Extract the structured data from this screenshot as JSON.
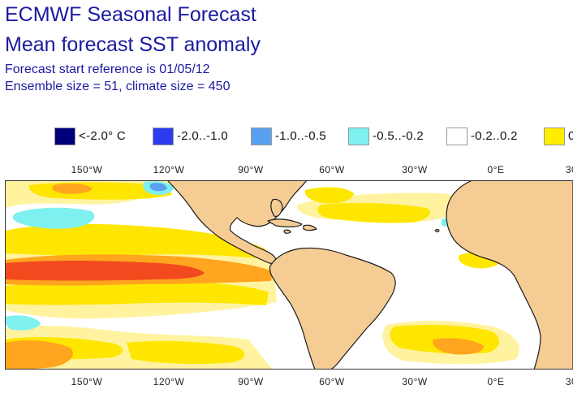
{
  "header": {
    "title": "ECMWF Seasonal Forecast",
    "subtitle": "Mean forecast SST anomaly",
    "start_reference": "Forecast start reference is 01/05/12",
    "ensemble_info": "Ensemble size = 51, climate size = 450"
  },
  "legend": [
    {
      "label": "<-2.0° C",
      "color": "#00007a"
    },
    {
      "label": "-2.0..-1.0",
      "color": "#2b3cf0"
    },
    {
      "label": "-1.0..-0.5",
      "color": "#5aa0f0"
    },
    {
      "label": "-0.5..-0.2",
      "color": "#7ef0f0"
    },
    {
      "label": "-0.2..0.2",
      "color": "#ffffff"
    },
    {
      "label": "0",
      "color": "#ffee00"
    }
  ],
  "longitudes": [
    "150°W",
    "120°W",
    "90°W",
    "60°W",
    "30°W",
    "0°E",
    "30"
  ],
  "colors": {
    "land": "#f5cd94",
    "coast": "#1a1a1a",
    "ocean": "#ffffff",
    "pale_yellow": "#fff3a0",
    "yellow": "#ffe600",
    "orange": "#ffa51e",
    "red_orange": "#f24a1e",
    "light_blue": "#7ef0f0",
    "mid_blue": "#5aa0f0"
  }
}
